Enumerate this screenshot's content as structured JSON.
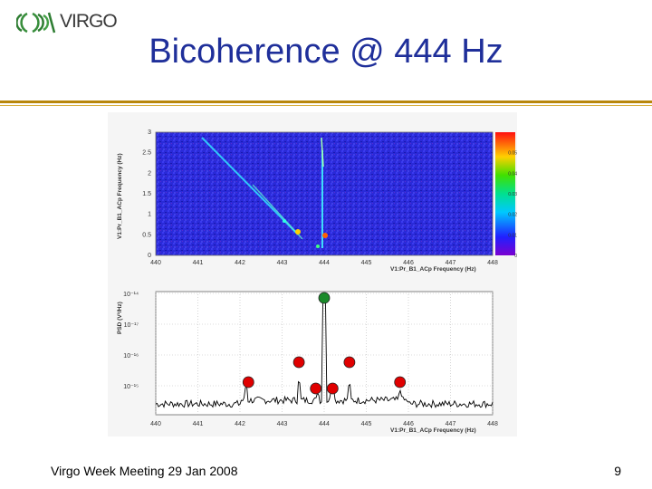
{
  "logo": {
    "text": "VIRGO"
  },
  "slide": {
    "title": "Bicoherence @ 444 Hz",
    "footer_left": "Virgo Week Meeting 29 Jan 2008",
    "page_number": "9"
  },
  "colors": {
    "title": "#1f2f9a",
    "rule": "#b8860b",
    "marker_primary": "#1a8a2a",
    "marker_secondary": "#e00000"
  },
  "chart_data": [
    {
      "type": "heatmap",
      "xlabel": "V1:Pr_B1_ACp Frequency (Hz)",
      "ylabel": "V1:Pr_B1_ACp Frequency (Hz)",
      "x_ticks": [
        "440",
        "441",
        "442",
        "443",
        "444",
        "445",
        "446",
        "447",
        "448"
      ],
      "y_ticks": [
        "0",
        "0.5",
        "1",
        "1.5",
        "2",
        "2.5",
        "3"
      ],
      "xlim": [
        440,
        448
      ],
      "ylim": [
        0,
        3
      ],
      "colorbar_ticks": [
        "0",
        "0.01",
        "0.02",
        "0.03",
        "0.04",
        "0.05"
      ],
      "colorbar_range": [
        0,
        0.06
      ]
    },
    {
      "type": "line",
      "xlabel": "V1:Pr_B1_ACp Frequency (Hz)",
      "ylabel": "PSD (V²/Hz)",
      "x_ticks": [
        "440",
        "441",
        "442",
        "443",
        "444",
        "445",
        "446",
        "447",
        "448"
      ],
      "y_ticks": [
        "10⁻¹⁴",
        "10⁻¹⁷",
        "10⁻¹⁶",
        "10⁻¹⁵"
      ],
      "xlim": [
        440,
        448
      ],
      "grid": true,
      "markers": [
        {
          "color": "green",
          "x": 444.0,
          "level": "high"
        },
        {
          "color": "red",
          "x": 442.2,
          "level": "mid"
        },
        {
          "color": "red",
          "x": 443.4,
          "level": "upper"
        },
        {
          "color": "red",
          "x": 443.8,
          "level": "low"
        },
        {
          "color": "red",
          "x": 444.2,
          "level": "low"
        },
        {
          "color": "red",
          "x": 444.6,
          "level": "upper"
        },
        {
          "color": "red",
          "x": 445.8,
          "level": "mid"
        }
      ]
    }
  ]
}
